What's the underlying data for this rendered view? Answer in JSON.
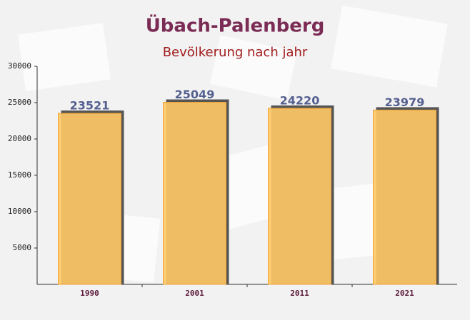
{
  "chart_data": {
    "type": "bar",
    "title": "Übach-Palenberg",
    "subtitle": "Bevölkerung nach jahr",
    "categories": [
      "1990",
      "2001",
      "2011",
      "2021"
    ],
    "values": [
      23521,
      25049,
      24220,
      23979
    ],
    "color": "#ffc966",
    "ylim": [
      0,
      30000
    ],
    "yticks": [
      5000,
      10000,
      15000,
      20000,
      25000,
      30000
    ],
    "grid": false
  }
}
